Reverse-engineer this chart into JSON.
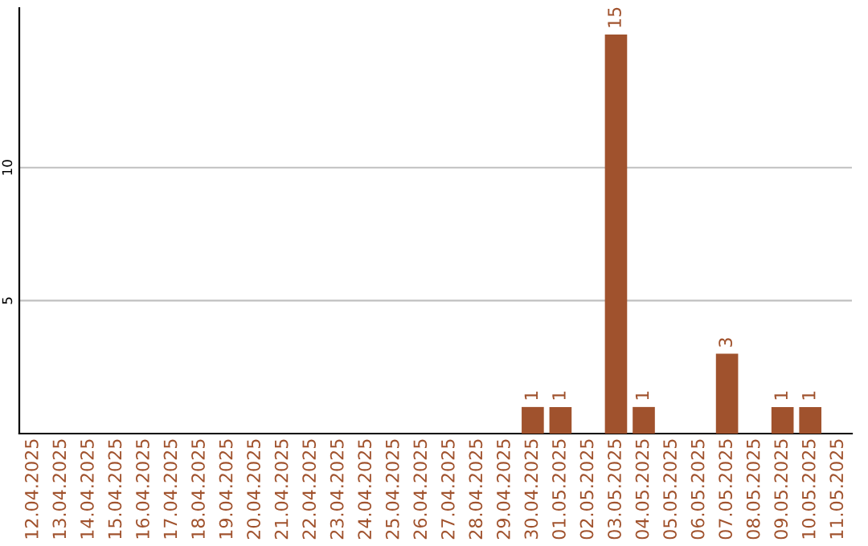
{
  "chart_data": {
    "type": "bar",
    "categories": [
      "12.04.2025",
      "13.04.2025",
      "14.04.2025",
      "15.04.2025",
      "16.04.2025",
      "17.04.2025",
      "18.04.2025",
      "19.04.2025",
      "20.04.2025",
      "21.04.2025",
      "22.04.2025",
      "23.04.2025",
      "24.04.2025",
      "25.04.2025",
      "26.04.2025",
      "27.04.2025",
      "28.04.2025",
      "29.04.2025",
      "30.04.2025",
      "01.05.2025",
      "02.05.2025",
      "03.05.2025",
      "04.05.2025",
      "05.05.2025",
      "06.05.2025",
      "07.05.2025",
      "08.05.2025",
      "09.05.2025",
      "10.05.2025",
      "11.05.2025"
    ],
    "values": [
      0,
      0,
      0,
      0,
      0,
      0,
      0,
      0,
      0,
      0,
      0,
      0,
      0,
      0,
      0,
      0,
      0,
      0,
      1,
      1,
      0,
      15,
      1,
      0,
      0,
      3,
      0,
      1,
      1,
      0
    ],
    "value_labels": [
      null,
      null,
      null,
      null,
      null,
      null,
      null,
      null,
      null,
      null,
      null,
      null,
      null,
      null,
      null,
      null,
      null,
      null,
      "1",
      "1",
      null,
      "15",
      "1",
      null,
      null,
      "3",
      null,
      "1",
      "1",
      null
    ],
    "color": "#a0522d",
    "ylim": [
      0,
      16
    ],
    "yticks": [
      5,
      10
    ],
    "grid": "y",
    "legend": false
  }
}
